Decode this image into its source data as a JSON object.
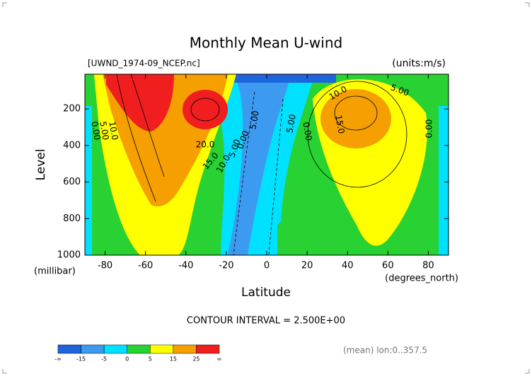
{
  "chart_data": {
    "type": "contour",
    "title": "Monthly Mean U-wind",
    "subtitle": "[UWND_1974-09_NCEP.nc]",
    "units": "(units:m/s)",
    "x_label": "Latitude",
    "x_units": "(degrees_north)",
    "y_label": "Level",
    "y_units": "(millibar)",
    "xlim": [
      -90,
      90
    ],
    "xticks": [
      -80,
      -60,
      -40,
      -20,
      0,
      20,
      40,
      60,
      80
    ],
    "ylim": [
      1000,
      10
    ],
    "yticks": [
      200,
      400,
      600,
      800,
      1000
    ],
    "contour_labels": [
      "0.00",
      "5.00",
      "10.0",
      "20.0",
      "15.0",
      "10.0",
      "5.00",
      "0.00",
      "5.00",
      "5.00",
      "0.00",
      "10.0",
      "5.00",
      "15.0",
      "0.00"
    ],
    "contour_interval": "CONTOUR INTERVAL = 2.500E+00",
    "footnote": "(mean) lon:0..357.5",
    "colorbar": {
      "ticks": [
        {
          "value": null,
          "label": "-∞"
        },
        -15,
        -5,
        0,
        5,
        15,
        25,
        {
          "value": null,
          "label": "∞"
        }
      ],
      "colors": [
        "#1e64dc",
        "#3c9bf0",
        "#00e1ff",
        "#28d232",
        "#ffff00",
        "#f5a000",
        "#f01e1e"
      ]
    }
  }
}
